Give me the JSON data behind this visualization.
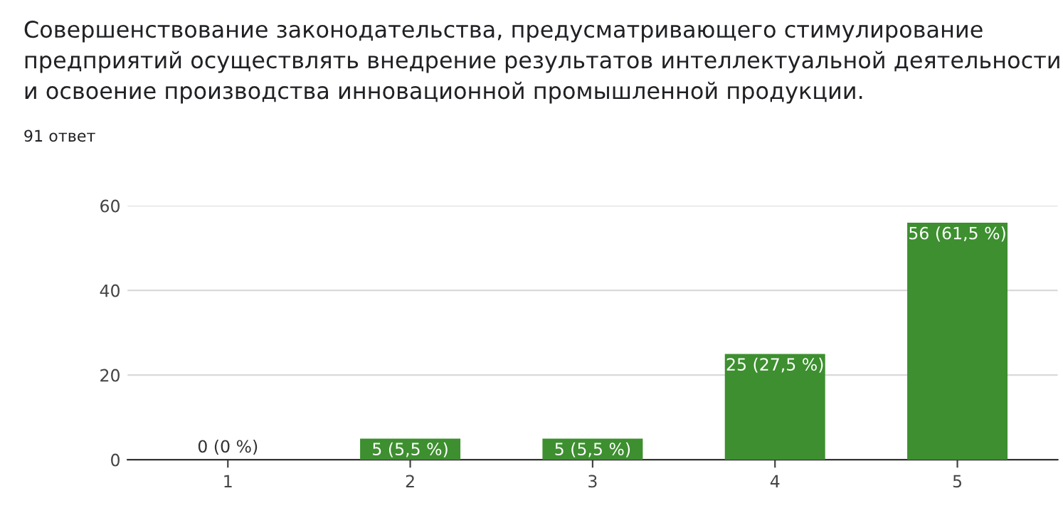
{
  "chart_data": {
    "type": "bar",
    "title": "Совершенствование законодательства, предусматривающего стимулирование предприятий осуществлять внедрение результатов интеллектуальной деятельности и освоение производства инновационной промышленной продукции.",
    "subtitle": "91 ответ",
    "categories": [
      "1",
      "2",
      "3",
      "4",
      "5"
    ],
    "values": [
      0,
      5,
      5,
      25,
      56
    ],
    "value_labels": [
      "0 (0 %)",
      "5 (5,5 %)",
      "5 (5,5 %)",
      "25 (27,5 %)",
      "56 (61,5 %)"
    ],
    "color": "#3d8f2f",
    "ylim": [
      0,
      60
    ],
    "yticks": [
      0,
      20,
      40,
      60
    ],
    "grid": "y"
  }
}
